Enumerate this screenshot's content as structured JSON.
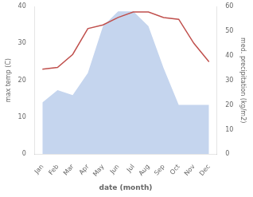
{
  "chart_data": {
    "type": "line",
    "xlabel": "date (month)",
    "ylabel": "max temp (C)",
    "y2label": "med. precipitation (kg/m2)",
    "categories": [
      "Jan",
      "Feb",
      "Mar",
      "Apr",
      "May",
      "Jun",
      "Jul",
      "Aug",
      "Sep",
      "Oct",
      "Nov",
      "Dec"
    ],
    "series": [
      {
        "type": "area",
        "axis": "y2",
        "color": "#c5d5ee",
        "values": [
          21,
          26,
          24,
          33,
          52,
          58,
          58,
          52,
          35,
          20,
          20,
          20
        ]
      },
      {
        "type": "line",
        "color": "#c0504d",
        "values": [
          23,
          23.5,
          27,
          34,
          35,
          37,
          38.5,
          38.5,
          37,
          36.5,
          30,
          25
        ]
      }
    ],
    "ylim": [
      0,
      40
    ],
    "yticks": [
      0,
      10,
      20,
      30,
      40
    ],
    "y2lim": [
      0,
      60
    ],
    "y2ticks": [
      0,
      10,
      20,
      30,
      40,
      50,
      60
    ],
    "grid": false
  }
}
